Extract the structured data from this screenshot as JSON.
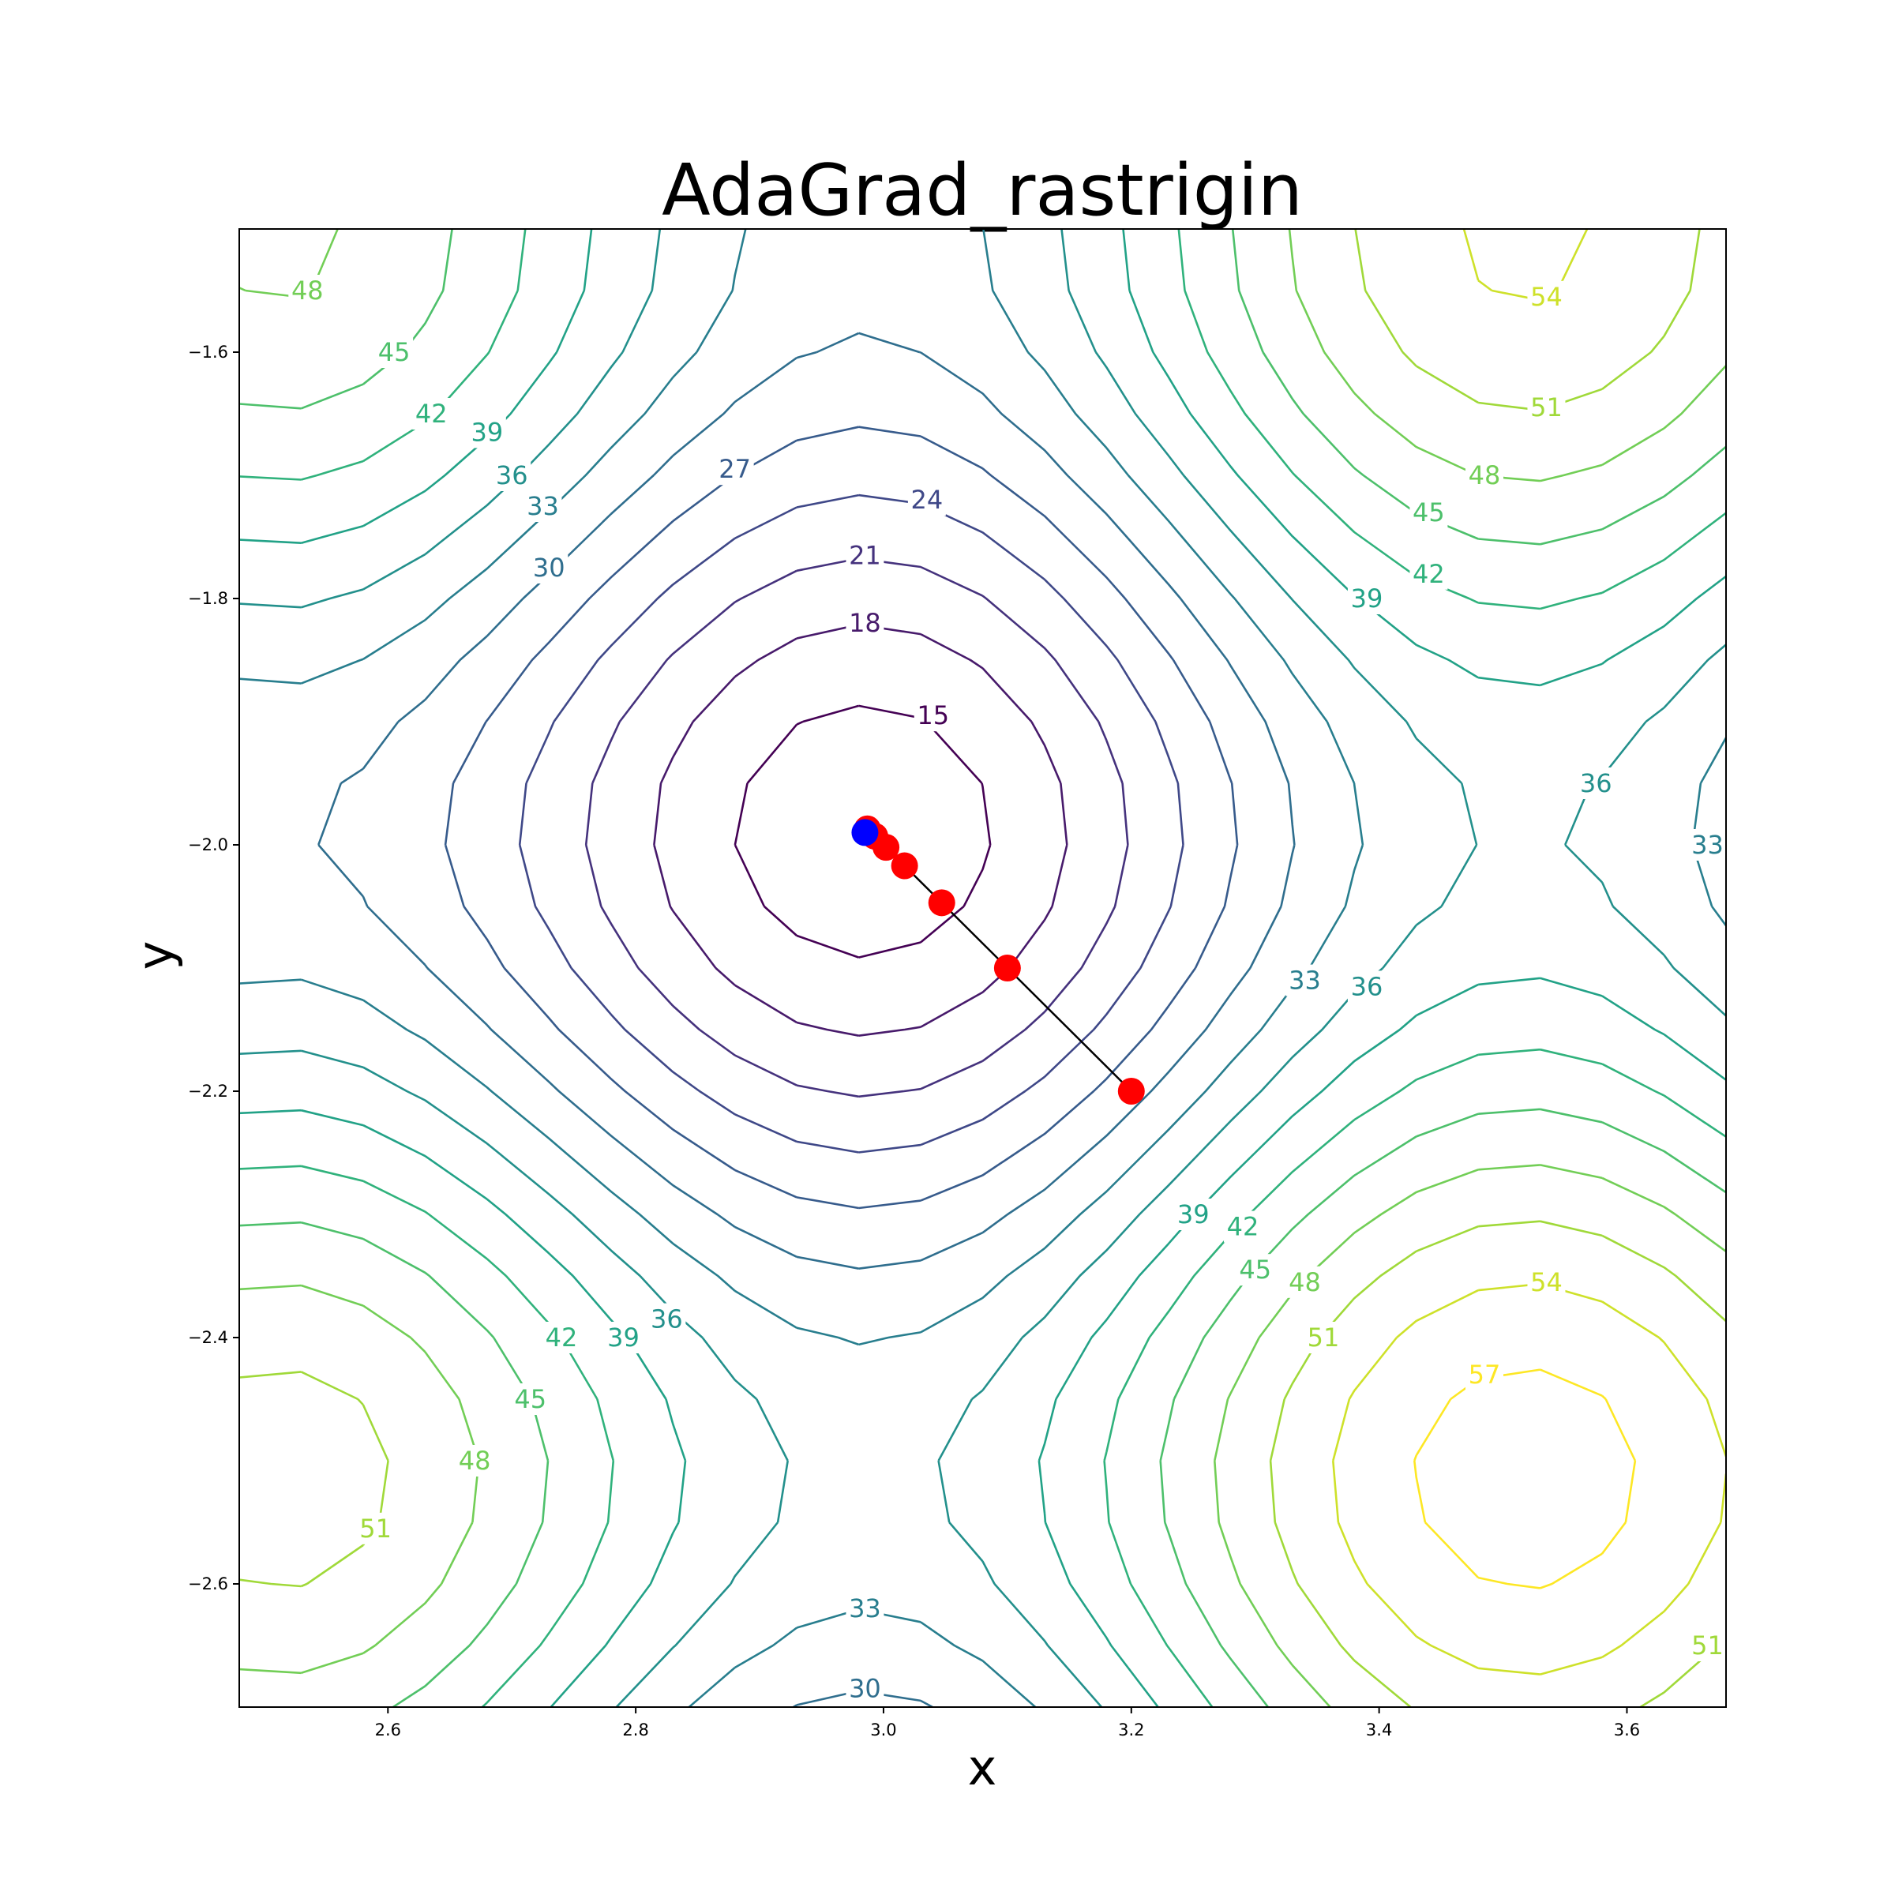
{
  "chart_data": {
    "type": "contour",
    "title": "AdaGrad_rastrigin",
    "xlabel": "x",
    "ylabel": "y",
    "xlim": [
      2.48,
      3.68
    ],
    "ylim": [
      -2.7,
      -1.5
    ],
    "xticks": [
      2.6,
      2.8,
      3.0,
      3.2,
      3.4,
      3.6
    ],
    "yticks": [
      -2.6,
      -2.4,
      -2.2,
      -2.0,
      -1.8,
      -1.6
    ],
    "xtick_labels": [
      "2.6",
      "2.8",
      "3.0",
      "3.2",
      "3.4",
      "3.6"
    ],
    "ytick_labels": [
      "−2.6",
      "−2.4",
      "−2.2",
      "−2.0",
      "−1.8",
      "−1.6"
    ],
    "function": "rastrigin",
    "contour_levels": [
      15,
      18,
      21,
      24,
      27,
      30,
      33,
      36,
      39,
      42,
      45,
      48,
      51,
      54,
      57
    ],
    "colormap": "viridis",
    "contour_labels": [
      {
        "text": "15",
        "x": 3.04,
        "y": -1.895
      },
      {
        "text": "18",
        "x": 2.985,
        "y": -1.82
      },
      {
        "text": "21",
        "x": 2.985,
        "y": -1.765
      },
      {
        "text": "24",
        "x": 3.035,
        "y": -1.72
      },
      {
        "text": "27",
        "x": 2.88,
        "y": -1.695
      },
      {
        "text": "30",
        "x": 2.73,
        "y": -1.775
      },
      {
        "text": "33",
        "x": 2.725,
        "y": -1.725
      },
      {
        "text": "36",
        "x": 2.7,
        "y": -1.7
      },
      {
        "text": "39",
        "x": 2.68,
        "y": -1.665
      },
      {
        "text": "42",
        "x": 2.635,
        "y": -1.65
      },
      {
        "text": "45",
        "x": 2.605,
        "y": -1.6
      },
      {
        "text": "48",
        "x": 2.535,
        "y": -1.55
      },
      {
        "text": "54",
        "x": 3.535,
        "y": -1.555
      },
      {
        "text": "51",
        "x": 3.535,
        "y": -1.645
      },
      {
        "text": "48",
        "x": 3.485,
        "y": -1.7
      },
      {
        "text": "45",
        "x": 3.44,
        "y": -1.73
      },
      {
        "text": "42",
        "x": 3.44,
        "y": -1.78
      },
      {
        "text": "39",
        "x": 3.39,
        "y": -1.8
      },
      {
        "text": "36",
        "x": 3.575,
        "y": -1.95
      },
      {
        "text": "33",
        "x": 3.665,
        "y": -2.0
      },
      {
        "text": "33",
        "x": 3.34,
        "y": -2.11
      },
      {
        "text": "36",
        "x": 3.39,
        "y": -2.115
      },
      {
        "text": "39",
        "x": 3.25,
        "y": -2.3
      },
      {
        "text": "42",
        "x": 3.29,
        "y": -2.31
      },
      {
        "text": "45",
        "x": 3.3,
        "y": -2.345
      },
      {
        "text": "48",
        "x": 3.34,
        "y": -2.355
      },
      {
        "text": "51",
        "x": 3.355,
        "y": -2.4
      },
      {
        "text": "54",
        "x": 3.535,
        "y": -2.355
      },
      {
        "text": "57",
        "x": 3.485,
        "y": -2.43
      },
      {
        "text": "51",
        "x": 3.665,
        "y": -2.65
      },
      {
        "text": "36",
        "x": 2.825,
        "y": -2.385
      },
      {
        "text": "39",
        "x": 2.79,
        "y": -2.4
      },
      {
        "text": "42",
        "x": 2.74,
        "y": -2.4
      },
      {
        "text": "45",
        "x": 2.715,
        "y": -2.45
      },
      {
        "text": "48",
        "x": 2.67,
        "y": -2.5
      },
      {
        "text": "51",
        "x": 2.59,
        "y": -2.555
      },
      {
        "text": "33",
        "x": 2.985,
        "y": -2.62
      },
      {
        "text": "30",
        "x": 2.985,
        "y": -2.685
      }
    ],
    "path": {
      "name": "AdaGrad",
      "x": [
        3.2,
        3.1,
        3.047,
        3.017,
        3.002,
        2.993,
        2.987
      ],
      "y": [
        -2.2,
        -2.1,
        -2.047,
        -2.017,
        -2.002,
        -1.993,
        -1.987
      ],
      "point_color": "#ff0000",
      "line_color": "#000000"
    },
    "final_point": {
      "x": 2.985,
      "y": -1.99,
      "color": "#0000ff"
    }
  }
}
